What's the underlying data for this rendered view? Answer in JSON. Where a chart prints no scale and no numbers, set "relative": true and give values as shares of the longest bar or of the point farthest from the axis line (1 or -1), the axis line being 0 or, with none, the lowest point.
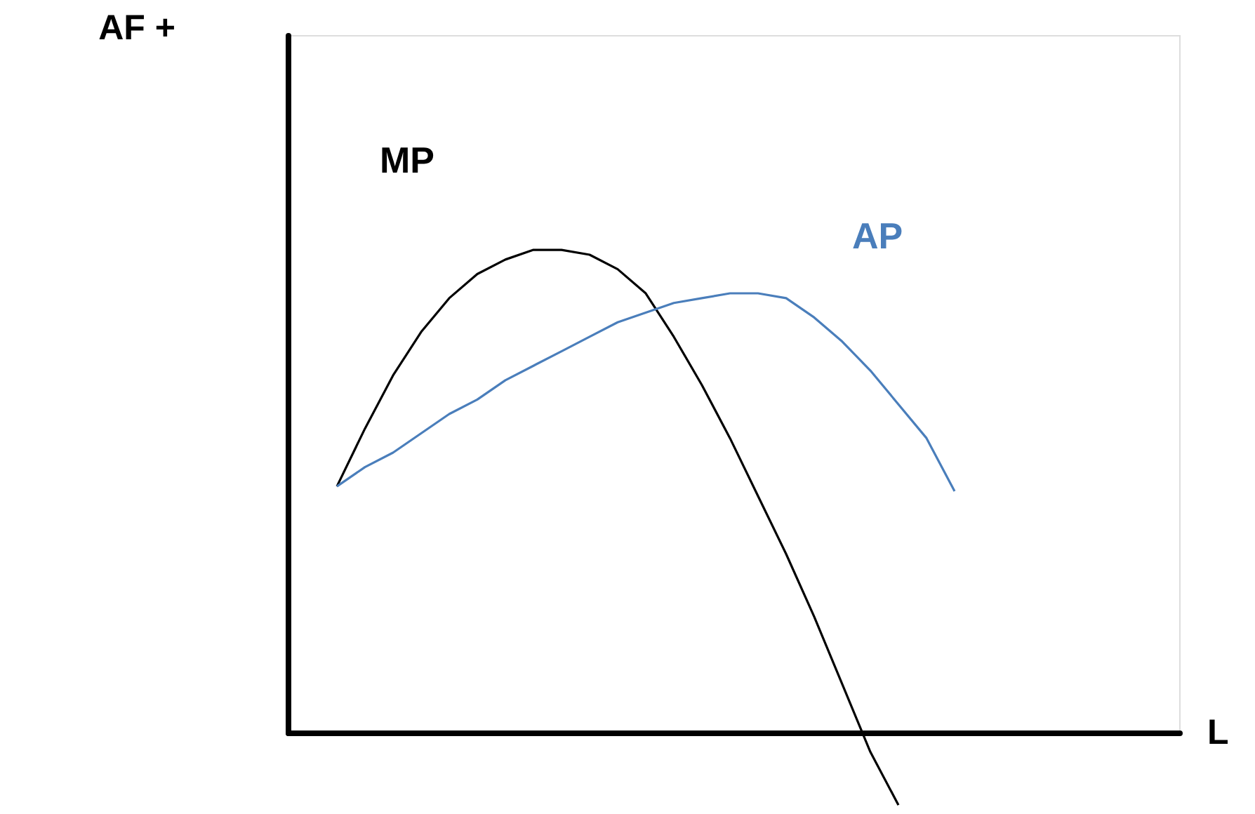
{
  "chart_data": {
    "type": "line",
    "relative": true,
    "annotations": [
      "L",
      "AF +"
    ],
    "grid": false,
    "line_style": "solid",
    "marker": "none",
    "categories": [
      null,
      null,
      null,
      null,
      null,
      null,
      null,
      null,
      null,
      null,
      null,
      null,
      null,
      null,
      null,
      null,
      null,
      null,
      null,
      null,
      null,
      null,
      null
    ],
    "series": [
      {
        "name": "MP",
        "color": "#000000",
        "values": [
          0.51,
          0.63,
          0.74,
          0.83,
          0.9,
          0.95,
          0.98,
          1.0,
          1.0,
          0.99,
          0.96,
          0.91,
          0.82,
          0.72,
          0.61,
          0.49,
          0.37,
          0.24,
          0.1,
          -0.04,
          -0.15,
          null,
          null
        ]
      },
      {
        "name": "AP",
        "color": "#4a7ebb",
        "values": [
          0.51,
          0.55,
          0.58,
          0.62,
          0.66,
          0.69,
          0.73,
          0.76,
          0.79,
          0.82,
          0.85,
          0.87,
          0.89,
          0.9,
          0.91,
          0.91,
          0.9,
          0.86,
          0.81,
          0.75,
          0.68,
          0.61,
          0.5
        ]
      }
    ]
  }
}
